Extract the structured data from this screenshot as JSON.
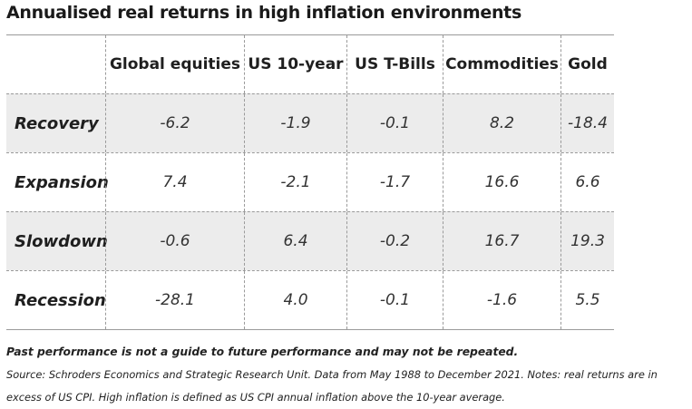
{
  "title": "Annualised real returns in high inflation environments",
  "table": {
    "columns": [
      "Global equities",
      "US 10-year",
      "US T-Bills",
      "Commodities",
      "Gold"
    ],
    "rows": [
      {
        "label": "Recovery",
        "values": [
          "-6.2",
          "-1.9",
          "-0.1",
          "8.2",
          "-18.4"
        ]
      },
      {
        "label": "Expansion",
        "values": [
          "7.4",
          "-2.1",
          "-1.7",
          "16.6",
          "6.6"
        ]
      },
      {
        "label": "Slowdown",
        "values": [
          "-0.6",
          "6.4",
          "-0.2",
          "16.7",
          "19.3"
        ]
      },
      {
        "label": "Recession",
        "values": [
          "-28.1",
          "4.0",
          "-0.1",
          "-1.6",
          "5.5"
        ]
      }
    ],
    "shaded_row_color": "#ececec"
  },
  "notes": {
    "disclaimer": "Past performance is not a guide to future performance and may not be repeated.",
    "source": "Source: Schroders Economics and Strategic Research Unit. Data from May 1988 to December 2021. Notes: real returns are in excess of US CPI. High inflation is defined as US CPI annual inflation above the 10-year average."
  }
}
